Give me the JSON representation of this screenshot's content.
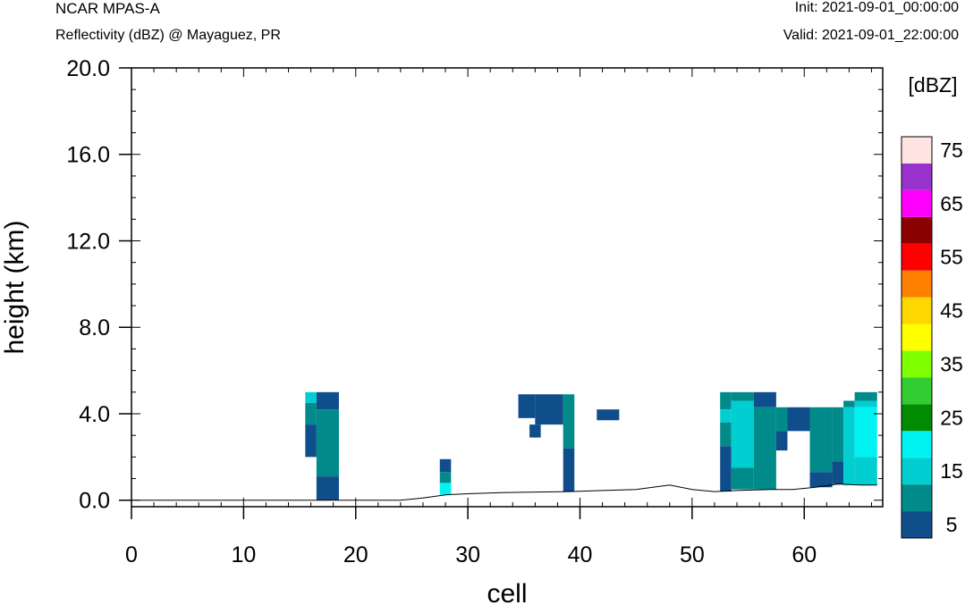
{
  "header": {
    "model": "NCAR MPAS-A",
    "subtitle": "Reflectivity (dBZ) @ Mayaguez, PR",
    "init": "Init: 2021-09-01_00:00:00",
    "valid": "Valid: 2021-09-01_22:00:00"
  },
  "chart_data": {
    "type": "heatmap",
    "xlabel": "cell",
    "ylabel": "height (km)",
    "xlim": [
      0,
      67
    ],
    "ylim": [
      -0.3,
      20.0
    ],
    "x_ticks": [
      0,
      10,
      20,
      30,
      40,
      50,
      60
    ],
    "y_ticks": [
      0.0,
      4.0,
      8.0,
      12.0,
      16.0,
      20.0
    ],
    "y_tick_labels": [
      "0.0",
      "4.0",
      "8.0",
      "12.0",
      "16.0",
      "20.0"
    ],
    "grid": false,
    "colorbar": {
      "label": "[dBZ]",
      "bins": [
        {
          "min": 0,
          "max": 10,
          "color": "#0f4d8b"
        },
        {
          "min": 10,
          "max": 15,
          "color": "#008a8a"
        },
        {
          "min": 15,
          "max": 20,
          "color": "#00ced1"
        },
        {
          "min": 20,
          "max": 25,
          "color": "#00f2f2"
        },
        {
          "min": 25,
          "max": 30,
          "color": "#008b00"
        },
        {
          "min": 30,
          "max": 35,
          "color": "#32cd32"
        },
        {
          "min": 35,
          "max": 40,
          "color": "#7fff00"
        },
        {
          "min": 40,
          "max": 45,
          "color": "#ffff00"
        },
        {
          "min": 45,
          "max": 50,
          "color": "#ffd700"
        },
        {
          "min": 50,
          "max": 55,
          "color": "#ff8000"
        },
        {
          "min": 55,
          "max": 60,
          "color": "#ff0000"
        },
        {
          "min": 60,
          "max": 65,
          "color": "#8b0000"
        },
        {
          "min": 65,
          "max": 70,
          "color": "#ff00ff"
        },
        {
          "min": 70,
          "max": 75,
          "color": "#9932cc"
        },
        {
          "min": 75,
          "max": 80,
          "color": "#ffe4e1"
        }
      ],
      "tick_labels": [
        "5",
        "15",
        "25",
        "35",
        "45",
        "55",
        "65",
        "75"
      ]
    },
    "terrain": [
      [
        0,
        0.0
      ],
      [
        24,
        0.0
      ],
      [
        26,
        0.1
      ],
      [
        28,
        0.25
      ],
      [
        30,
        0.3
      ],
      [
        33,
        0.35
      ],
      [
        36,
        0.38
      ],
      [
        39,
        0.4
      ],
      [
        42,
        0.45
      ],
      [
        45,
        0.5
      ],
      [
        48,
        0.7
      ],
      [
        50,
        0.5
      ],
      [
        52,
        0.4
      ],
      [
        54,
        0.45
      ],
      [
        57,
        0.5
      ],
      [
        59,
        0.5
      ],
      [
        61,
        0.6
      ],
      [
        63,
        0.75
      ],
      [
        65,
        0.7
      ],
      [
        66.5,
        0.7
      ]
    ],
    "cells": [
      {
        "x0": 15.5,
        "x1": 16.5,
        "y0": 4.5,
        "y1": 5.0,
        "dbz": 17
      },
      {
        "x0": 15.5,
        "x1": 16.5,
        "y0": 3.5,
        "y1": 4.5,
        "dbz": 12
      },
      {
        "x0": 15.5,
        "x1": 16.5,
        "y0": 2.0,
        "y1": 3.5,
        "dbz": 5
      },
      {
        "x0": 16.5,
        "x1": 18.5,
        "y0": 4.2,
        "y1": 5.0,
        "dbz": 5
      },
      {
        "x0": 16.5,
        "x1": 18.5,
        "y0": 1.1,
        "y1": 4.2,
        "dbz": 12
      },
      {
        "x0": 16.5,
        "x1": 18.5,
        "y0": 0.0,
        "y1": 1.1,
        "dbz": 5
      },
      {
        "x0": 27.5,
        "x1": 28.5,
        "y0": 1.3,
        "y1": 1.9,
        "dbz": 5
      },
      {
        "x0": 27.5,
        "x1": 28.5,
        "y0": 0.8,
        "y1": 1.3,
        "dbz": 12
      },
      {
        "x0": 27.5,
        "x1": 28.5,
        "y0": 0.25,
        "y1": 0.8,
        "dbz": 22
      },
      {
        "x0": 34.5,
        "x1": 36.0,
        "y0": 3.8,
        "y1": 4.9,
        "dbz": 5
      },
      {
        "x0": 36.0,
        "x1": 38.5,
        "y0": 3.5,
        "y1": 4.9,
        "dbz": 5
      },
      {
        "x0": 35.5,
        "x1": 36.5,
        "y0": 2.9,
        "y1": 3.5,
        "dbz": 5
      },
      {
        "x0": 38.5,
        "x1": 39.5,
        "y0": 2.4,
        "y1": 4.9,
        "dbz": 12
      },
      {
        "x0": 38.5,
        "x1": 39.5,
        "y0": 0.4,
        "y1": 2.4,
        "dbz": 5
      },
      {
        "x0": 41.5,
        "x1": 43.5,
        "y0": 3.7,
        "y1": 4.2,
        "dbz": 5
      },
      {
        "x0": 52.5,
        "x1": 53.5,
        "y0": 4.2,
        "y1": 5.0,
        "dbz": 12
      },
      {
        "x0": 52.5,
        "x1": 53.5,
        "y0": 3.6,
        "y1": 4.2,
        "dbz": 17
      },
      {
        "x0": 52.5,
        "x1": 53.5,
        "y0": 2.5,
        "y1": 3.6,
        "dbz": 12
      },
      {
        "x0": 52.5,
        "x1": 53.5,
        "y0": 0.4,
        "y1": 2.5,
        "dbz": 5
      },
      {
        "x0": 53.5,
        "x1": 55.5,
        "y0": 4.6,
        "y1": 5.0,
        "dbz": 12
      },
      {
        "x0": 53.5,
        "x1": 55.5,
        "y0": 1.5,
        "y1": 4.6,
        "dbz": 17
      },
      {
        "x0": 53.5,
        "x1": 55.5,
        "y0": 0.5,
        "y1": 1.5,
        "dbz": 12
      },
      {
        "x0": 55.5,
        "x1": 57.5,
        "y0": 4.3,
        "y1": 5.0,
        "dbz": 5
      },
      {
        "x0": 55.5,
        "x1": 57.5,
        "y0": 0.5,
        "y1": 4.3,
        "dbz": 12
      },
      {
        "x0": 57.5,
        "x1": 58.5,
        "y0": 3.2,
        "y1": 4.3,
        "dbz": 12
      },
      {
        "x0": 57.5,
        "x1": 58.5,
        "y0": 2.3,
        "y1": 3.2,
        "dbz": 5
      },
      {
        "x0": 58.5,
        "x1": 60.5,
        "y0": 3.2,
        "y1": 4.3,
        "dbz": 5
      },
      {
        "x0": 60.5,
        "x1": 62.5,
        "y0": 1.3,
        "y1": 4.3,
        "dbz": 12
      },
      {
        "x0": 60.5,
        "x1": 62.5,
        "y0": 0.6,
        "y1": 1.3,
        "dbz": 5
      },
      {
        "x0": 62.5,
        "x1": 63.5,
        "y0": 1.8,
        "y1": 4.3,
        "dbz": 12
      },
      {
        "x0": 62.5,
        "x1": 63.5,
        "y0": 0.75,
        "y1": 1.8,
        "dbz": 5
      },
      {
        "x0": 63.5,
        "x1": 64.5,
        "y0": 4.3,
        "y1": 4.6,
        "dbz": 12
      },
      {
        "x0": 63.5,
        "x1": 64.5,
        "y0": 0.7,
        "y1": 4.3,
        "dbz": 17
      },
      {
        "x0": 64.5,
        "x1": 66.5,
        "y0": 4.6,
        "y1": 5.0,
        "dbz": 12
      },
      {
        "x0": 64.5,
        "x1": 66.5,
        "y0": 4.3,
        "y1": 4.6,
        "dbz": 17
      },
      {
        "x0": 64.5,
        "x1": 66.5,
        "y0": 2.0,
        "y1": 4.3,
        "dbz": 22
      },
      {
        "x0": 64.5,
        "x1": 66.5,
        "y0": 0.7,
        "y1": 2.0,
        "dbz": 17
      }
    ]
  }
}
